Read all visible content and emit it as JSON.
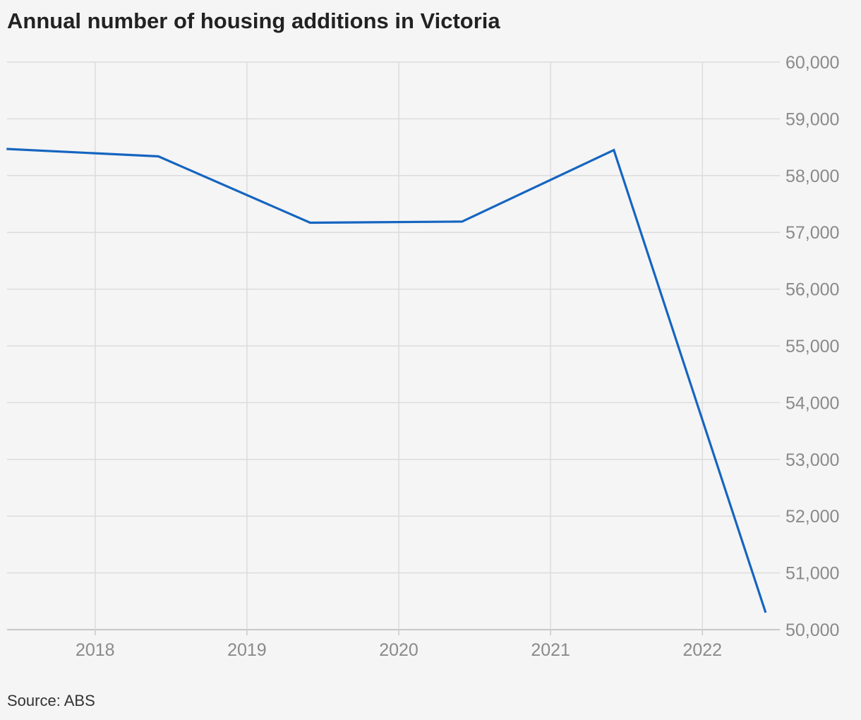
{
  "chart_data": {
    "type": "line",
    "title": "Annual number of housing additions in Victoria",
    "source": "Source: ABS",
    "xlabel": "",
    "ylabel": "",
    "x_ticks": [
      "2018",
      "2019",
      "2020",
      "2021",
      "2022"
    ],
    "y_ticks": [
      "50,000",
      "51,000",
      "52,000",
      "53,000",
      "54,000",
      "55,000",
      "56,000",
      "57,000",
      "58,000",
      "59,000",
      "60,000"
    ],
    "ylim": [
      50000,
      60000
    ],
    "xlim": [
      2017.42,
      2022.51
    ],
    "grid": true,
    "y_axis_position": "right",
    "line_color": "#1565c0",
    "series": [
      {
        "x": [
          "2017-06",
          "2018-06",
          "2019-06",
          "2020-06",
          "2021-06",
          "2022-06"
        ],
        "values": [
          58470,
          58340,
          57170,
          57190,
          58450,
          50300
        ]
      }
    ]
  }
}
